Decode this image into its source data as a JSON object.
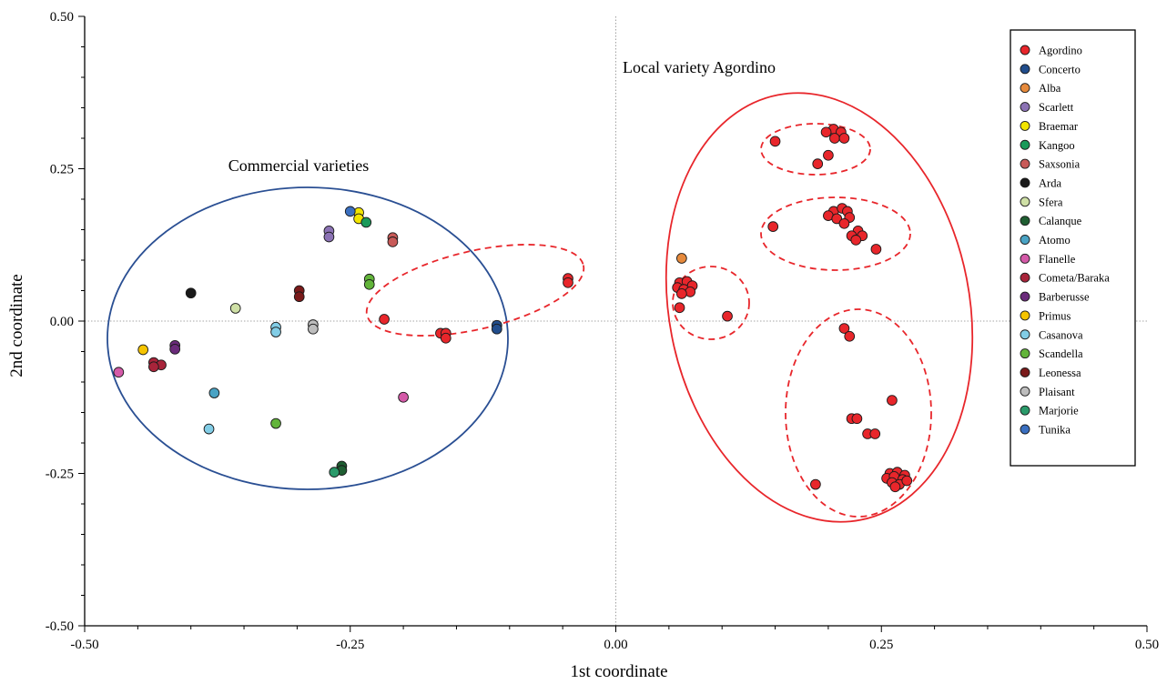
{
  "chart_data": {
    "type": "scatter",
    "xlabel": "1st coordinate",
    "ylabel": "2nd coordinate",
    "xlim": [
      -0.5,
      0.5
    ],
    "ylim": [
      -0.5,
      0.5
    ],
    "x_ticks": [
      {
        "value": -0.5,
        "label": "-0.50"
      },
      {
        "value": -0.25,
        "label": "-0.25"
      },
      {
        "value": 0.0,
        "label": "0.00"
      },
      {
        "value": 0.25,
        "label": "0.25"
      },
      {
        "value": 0.5,
        "label": "0.50"
      }
    ],
    "y_ticks": [
      {
        "value": 0.5,
        "label": "0.50"
      },
      {
        "value": 0.25,
        "label": "0.25"
      },
      {
        "value": 0.0,
        "label": "0.00"
      },
      {
        "value": -0.25,
        "label": "-0.25"
      },
      {
        "value": -0.5,
        "label": "-0.50"
      }
    ],
    "legend_position": "top-right",
    "annotations": [
      {
        "text": "Commercial varieties",
        "x": -0.3,
        "y": 0.24
      },
      {
        "text": "Local variety Agordino",
        "x": 0.07,
        "y": 0.4
      }
    ],
    "series": [
      {
        "name": "Agordino",
        "color": "#e8262b",
        "points": [
          [
            0.205,
            0.315
          ],
          [
            0.212,
            0.31
          ],
          [
            0.198,
            0.31
          ],
          [
            0.206,
            0.3
          ],
          [
            0.215,
            0.3
          ],
          [
            0.15,
            0.295
          ],
          [
            0.2,
            0.272
          ],
          [
            0.19,
            0.258
          ],
          [
            0.205,
            0.18
          ],
          [
            0.213,
            0.185
          ],
          [
            0.218,
            0.18
          ],
          [
            0.2,
            0.173
          ],
          [
            0.208,
            0.168
          ],
          [
            0.22,
            0.17
          ],
          [
            0.215,
            0.16
          ],
          [
            0.148,
            0.155
          ],
          [
            0.228,
            0.148
          ],
          [
            0.222,
            0.14
          ],
          [
            0.232,
            0.14
          ],
          [
            0.226,
            0.133
          ],
          [
            0.245,
            0.118
          ],
          [
            -0.045,
            0.07
          ],
          [
            -0.045,
            0.063
          ],
          [
            0.06,
            0.063
          ],
          [
            0.067,
            0.065
          ],
          [
            0.072,
            0.058
          ],
          [
            0.058,
            0.055
          ],
          [
            0.064,
            0.052
          ],
          [
            0.07,
            0.048
          ],
          [
            0.062,
            0.045
          ],
          [
            0.06,
            0.022
          ],
          [
            0.105,
            0.008
          ],
          [
            -0.218,
            0.003
          ],
          [
            -0.165,
            -0.02
          ],
          [
            -0.16,
            -0.02
          ],
          [
            -0.16,
            -0.028
          ],
          [
            0.215,
            -0.012
          ],
          [
            0.22,
            -0.025
          ],
          [
            0.26,
            -0.13
          ],
          [
            0.222,
            -0.16
          ],
          [
            0.227,
            -0.16
          ],
          [
            0.237,
            -0.185
          ],
          [
            0.244,
            -0.185
          ],
          [
            0.188,
            -0.268
          ],
          [
            0.258,
            -0.25
          ],
          [
            0.265,
            -0.248
          ],
          [
            0.272,
            -0.253
          ],
          [
            0.255,
            -0.258
          ],
          [
            0.262,
            -0.255
          ],
          [
            0.27,
            -0.26
          ],
          [
            0.26,
            -0.265
          ],
          [
            0.267,
            -0.268
          ],
          [
            0.274,
            -0.262
          ],
          [
            0.263,
            -0.272
          ]
        ]
      },
      {
        "name": "Concerto",
        "color": "#214d8c",
        "points": [
          [
            -0.112,
            -0.007
          ],
          [
            -0.112,
            -0.013
          ]
        ]
      },
      {
        "name": "Alba",
        "color": "#e68a3c",
        "points": [
          [
            0.062,
            0.103
          ]
        ]
      },
      {
        "name": "Scarlett",
        "color": "#8b72b4",
        "points": [
          [
            -0.27,
            0.148
          ],
          [
            -0.27,
            0.138
          ]
        ]
      },
      {
        "name": "Braemar",
        "color": "#f2e500",
        "points": [
          [
            -0.242,
            0.178
          ],
          [
            -0.242,
            0.168
          ]
        ]
      },
      {
        "name": "Kangoo",
        "color": "#1a9a5a",
        "points": [
          [
            -0.235,
            0.162
          ]
        ]
      },
      {
        "name": "Saxsonia",
        "color": "#c85a58",
        "points": [
          [
            -0.21,
            0.137
          ],
          [
            -0.21,
            0.13
          ]
        ]
      },
      {
        "name": "Arda",
        "color": "#1a1a1a",
        "points": [
          [
            -0.4,
            0.046
          ]
        ]
      },
      {
        "name": "Sfera",
        "color": "#cfe0a6",
        "points": [
          [
            -0.358,
            0.021
          ]
        ]
      },
      {
        "name": "Calanque",
        "color": "#1f5e32",
        "points": [
          [
            -0.258,
            -0.238
          ],
          [
            -0.258,
            -0.245
          ]
        ]
      },
      {
        "name": "Atomo",
        "color": "#4aa3c4",
        "points": [
          [
            -0.378,
            -0.118
          ]
        ]
      },
      {
        "name": "Flanelle",
        "color": "#d45aa8",
        "points": [
          [
            -0.468,
            -0.084
          ],
          [
            -0.2,
            -0.125
          ]
        ]
      },
      {
        "name": "Cometa/Baraka",
        "color": "#a8243a",
        "points": [
          [
            -0.435,
            -0.068
          ],
          [
            -0.428,
            -0.072
          ],
          [
            -0.435,
            -0.075
          ]
        ]
      },
      {
        "name": "Barberusse",
        "color": "#6a2a7a",
        "points": [
          [
            -0.415,
            -0.04
          ],
          [
            -0.415,
            -0.046
          ]
        ]
      },
      {
        "name": "Primus",
        "color": "#f5c400",
        "points": [
          [
            -0.445,
            -0.047
          ]
        ]
      },
      {
        "name": "Casanova",
        "color": "#82cde6",
        "points": [
          [
            -0.32,
            -0.01
          ],
          [
            -0.32,
            -0.018
          ],
          [
            -0.383,
            -0.177
          ]
        ]
      },
      {
        "name": "Scandella",
        "color": "#62b43a",
        "points": [
          [
            -0.232,
            0.069
          ],
          [
            -0.232,
            0.06
          ],
          [
            -0.32,
            -0.168
          ]
        ]
      },
      {
        "name": "Leonessa",
        "color": "#7a1a1a",
        "points": [
          [
            -0.298,
            0.05
          ],
          [
            -0.298,
            0.04
          ]
        ]
      },
      {
        "name": "Plaisant",
        "color": "#bdbdbd",
        "points": [
          [
            -0.285,
            -0.006
          ],
          [
            -0.285,
            -0.013
          ]
        ]
      },
      {
        "name": "Marjorie",
        "color": "#2a9a6a",
        "points": [
          [
            -0.265,
            -0.248
          ]
        ]
      },
      {
        "name": "Tunika",
        "color": "#3a6fc0",
        "points": [
          [
            -0.25,
            0.18
          ]
        ]
      }
    ]
  }
}
